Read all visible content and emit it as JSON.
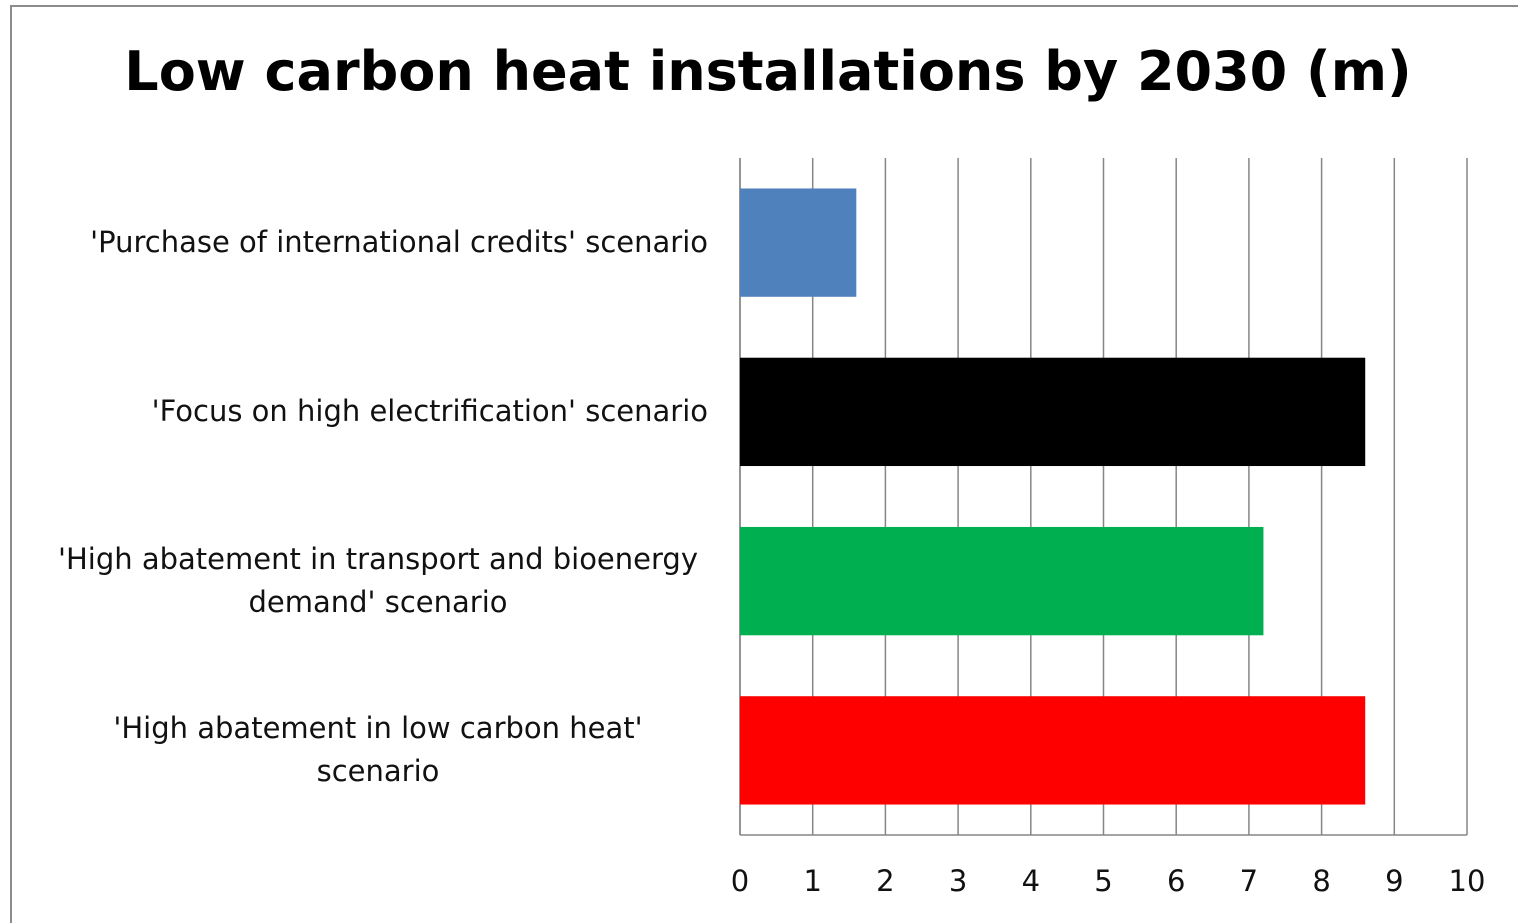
{
  "chart_data": {
    "type": "bar",
    "orientation": "horizontal",
    "title": "Low carbon heat installations by 2030 (m)",
    "categories": [
      "'Purchase of international credits' scenario",
      "'Focus on high electrification' scenario",
      "'High abatement in transport and bioenergy demand' scenario",
      "'High abatement in low carbon heat' scenario"
    ],
    "values": [
      1.6,
      8.6,
      7.2,
      8.6
    ],
    "colors": [
      "#4f81bd",
      "#000000",
      "#00b050",
      "#ff0000"
    ],
    "xlim": [
      0,
      10
    ],
    "xticks": [
      0,
      1,
      2,
      3,
      4,
      5,
      6,
      7,
      8,
      9,
      10
    ],
    "grid": true
  }
}
